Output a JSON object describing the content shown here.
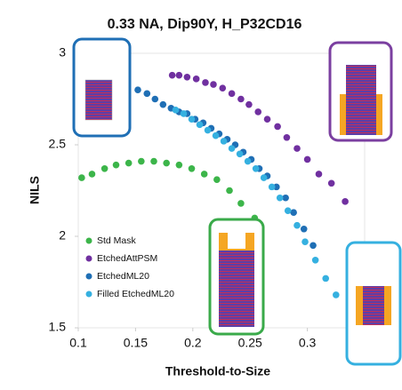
{
  "chart_data": {
    "type": "scatter",
    "title": "0.33 NA, Dip90Y, H_P32CD16",
    "x_label": "Threshold-to-Size",
    "y_label": "NILS",
    "xlim": [
      0.1,
      0.35
    ],
    "xticks": [
      0.1,
      0.15,
      0.2,
      0.25,
      0.3
    ],
    "ylim": [
      1.5,
      3
    ],
    "yticks": [
      1.5,
      2,
      2.5,
      3
    ],
    "grid": false,
    "legend": "lower left",
    "series": [
      {
        "name": "Std Mask",
        "color": "#3cb54a",
        "x": [
          0.103,
          0.112,
          0.123,
          0.133,
          0.144,
          0.155,
          0.166,
          0.177,
          0.188,
          0.199,
          0.21,
          0.221,
          0.232,
          0.242,
          0.254
        ],
        "values": [
          2.32,
          2.34,
          2.37,
          2.39,
          2.4,
          2.41,
          2.41,
          2.4,
          2.39,
          2.37,
          2.34,
          2.31,
          2.25,
          2.18,
          2.1
        ]
      },
      {
        "name": "EtchedAttPSM",
        "color": "#7030a0",
        "x": [
          0.182,
          0.188,
          0.195,
          0.203,
          0.211,
          0.218,
          0.226,
          0.234,
          0.242,
          0.249,
          0.257,
          0.265,
          0.274,
          0.282,
          0.291,
          0.3,
          0.31,
          0.321,
          0.333
        ],
        "values": [
          2.88,
          2.88,
          2.87,
          2.86,
          2.84,
          2.83,
          2.81,
          2.78,
          2.75,
          2.72,
          2.68,
          2.64,
          2.6,
          2.54,
          2.48,
          2.42,
          2.34,
          2.29,
          2.19
        ]
      },
      {
        "name": "EtchedML20",
        "color": "#1f6fb5",
        "x": [
          0.152,
          0.16,
          0.167,
          0.174,
          0.181,
          0.188,
          0.195,
          0.202,
          0.209,
          0.216,
          0.223,
          0.23,
          0.237,
          0.244,
          0.251,
          0.258,
          0.265,
          0.273,
          0.281,
          0.288,
          0.297,
          0.305
        ],
        "values": [
          2.8,
          2.78,
          2.75,
          2.72,
          2.7,
          2.68,
          2.67,
          2.64,
          2.62,
          2.59,
          2.56,
          2.53,
          2.5,
          2.46,
          2.42,
          2.37,
          2.33,
          2.27,
          2.21,
          2.13,
          2.04,
          1.95
        ]
      },
      {
        "name": "Filled EtchedML20",
        "color": "#35b0e0",
        "x": [
          0.185,
          0.192,
          0.199,
          0.206,
          0.213,
          0.22,
          0.227,
          0.234,
          0.241,
          0.248,
          0.255,
          0.262,
          0.269,
          0.276,
          0.283,
          0.291,
          0.298,
          0.307,
          0.316,
          0.325
        ],
        "values": [
          2.69,
          2.67,
          2.64,
          2.61,
          2.58,
          2.55,
          2.52,
          2.48,
          2.45,
          2.41,
          2.37,
          2.32,
          2.27,
          2.21,
          2.14,
          2.06,
          1.97,
          1.87,
          1.77,
          1.68
        ]
      }
    ]
  }
}
